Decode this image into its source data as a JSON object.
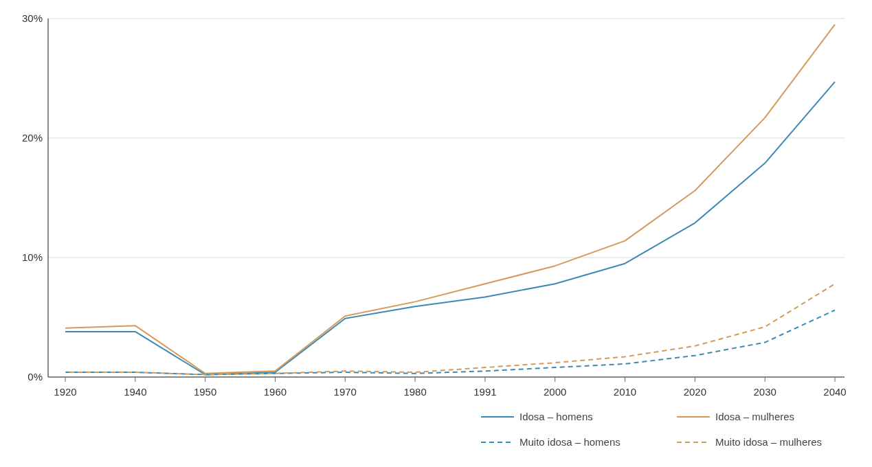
{
  "chart_data": {
    "type": "line",
    "categories": [
      "1920",
      "1940",
      "1950",
      "1960",
      "1970",
      "1980",
      "1991",
      "2000",
      "2010",
      "2020",
      "2030",
      "2040"
    ],
    "ylim": [
      0,
      30
    ],
    "yticks": [
      {
        "value": 0,
        "label": "0%"
      },
      {
        "value": 10,
        "label": "10%"
      },
      {
        "value": 20,
        "label": "20%"
      },
      {
        "value": 30,
        "label": "30%"
      }
    ],
    "grid": "y",
    "legend": "bottom right",
    "marker": "none",
    "series": [
      {
        "name": "Idosa – homens",
        "color": "#3c89b4",
        "line_style": "solid",
        "values": [
          3.8,
          3.8,
          0.2,
          0.4,
          4.9,
          5.9,
          6.7,
          7.8,
          9.5,
          12.9,
          17.9,
          24.7
        ]
      },
      {
        "name": "Idosa – mulheres",
        "color": "#d39a5a",
        "line_style": "solid",
        "values": [
          4.1,
          4.3,
          0.3,
          0.5,
          5.1,
          6.3,
          7.8,
          9.3,
          11.4,
          15.6,
          21.7,
          29.5
        ]
      },
      {
        "name": "Muito idosa – homens",
        "color": "#3c89b4",
        "line_style": "dashed",
        "values": [
          0.4,
          0.4,
          0.2,
          0.3,
          0.4,
          0.3,
          0.5,
          0.8,
          1.1,
          1.8,
          2.9,
          5.6
        ]
      },
      {
        "name": "Muito idosa – mulheres",
        "color": "#d39a5a",
        "line_style": "dashed",
        "values": [
          0.4,
          0.4,
          0.2,
          0.3,
          0.5,
          0.4,
          0.8,
          1.2,
          1.7,
          2.6,
          4.2,
          7.8
        ]
      }
    ]
  }
}
